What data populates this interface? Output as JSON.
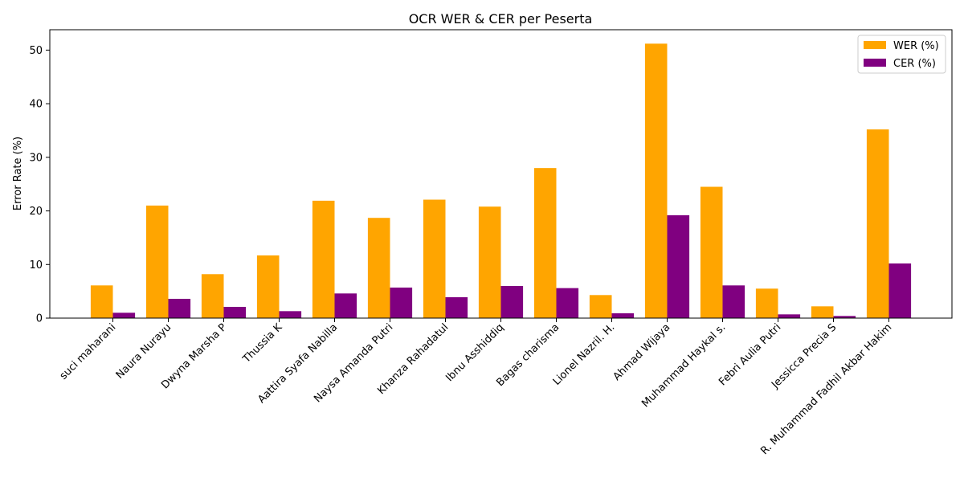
{
  "chart_data": {
    "type": "bar",
    "title": "OCR WER & CER per Peserta",
    "xlabel": "",
    "ylabel": "Error Rate (%)",
    "ylim": [
      0,
      53.8
    ],
    "yticks": [
      0,
      10,
      20,
      30,
      40,
      50
    ],
    "grid": false,
    "legend_position": "top-right",
    "categories": [
      "suci maharani",
      "Naura Nurayu",
      "Dwyna Marsha P",
      "Thussia K",
      "Aattira Syafa Nabilla",
      "Naysa Amanda Putri",
      "Khanza Rahadatul",
      "Ibnu Asshiddiq",
      "Bagas charisma",
      "Lionel Nazril. H.",
      "Ahmad Wijaya",
      "Muhammad Haykal s.",
      "Febri Aulia Putri",
      "Jessicca Precia S",
      "R. Muhammad Fadhil Akbar Hakim"
    ],
    "series": [
      {
        "name": "WER (%)",
        "color": "#ffa500",
        "values": [
          6.1,
          21.0,
          8.2,
          11.7,
          21.9,
          18.7,
          22.1,
          20.8,
          28.0,
          4.3,
          51.2,
          24.5,
          5.5,
          2.2,
          35.2
        ]
      },
      {
        "name": "CER (%)",
        "color": "#800080",
        "values": [
          1.0,
          3.6,
          2.1,
          1.3,
          4.6,
          5.7,
          3.9,
          6.0,
          5.6,
          0.9,
          19.2,
          6.1,
          0.7,
          0.4,
          10.2
        ]
      }
    ]
  }
}
